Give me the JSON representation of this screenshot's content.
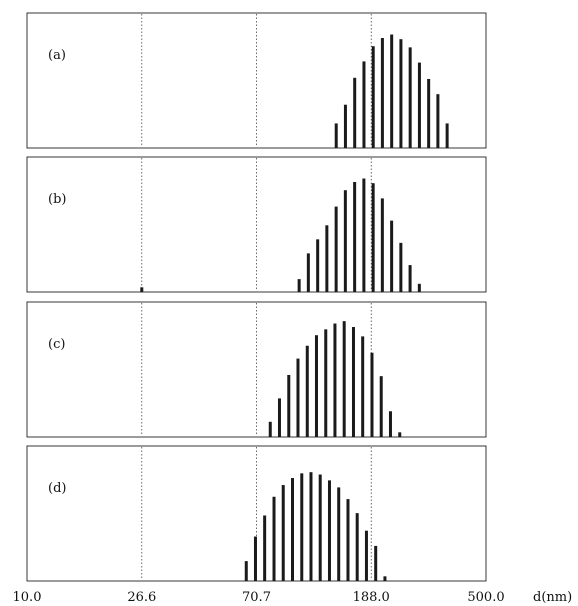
{
  "chart_data": {
    "type": "bar",
    "x_scale": "log",
    "xlim": [
      10.0,
      500.0
    ],
    "x_ticks": [
      "10.0",
      "26.6",
      "70.7",
      "188.0",
      "500.0"
    ],
    "x_tick_values": [
      10.0,
      26.6,
      70.7,
      188.0,
      500.0
    ],
    "xlabel": "d(nm)",
    "grid": "vertical dashed lines at 26.6, 70.7, 188.0",
    "y_axis": "relative frequency, unlabeled",
    "panels": [
      {
        "label": "(a)",
        "x": [
          139.5,
          150.9,
          163.3,
          176.7,
          191.2,
          206.8,
          223.8,
          242.1,
          262.0,
          283.5,
          306.7,
          331.8,
          359.0
        ],
        "values": [
          0.21,
          0.37,
          0.6,
          0.74,
          0.87,
          0.94,
          0.97,
          0.93,
          0.86,
          0.73,
          0.59,
          0.46,
          0.21
        ]
      },
      {
        "label": "(b)",
        "x": [
          26.6,
          101.7,
          110.0,
          119.1,
          128.8,
          139.4,
          150.8,
          163.2,
          176.6,
          191.1,
          206.7,
          223.7,
          242.0,
          261.8,
          283.3
        ],
        "values": [
          0.04,
          0.11,
          0.33,
          0.45,
          0.57,
          0.73,
          0.87,
          0.94,
          0.97,
          0.93,
          0.8,
          0.61,
          0.42,
          0.23,
          0.07
        ]
      },
      {
        "label": "(c)",
        "x": [
          79.5,
          86.0,
          93.1,
          100.7,
          109.0,
          117.9,
          127.6,
          138.0,
          149.3,
          161.6,
          174.8,
          189.2,
          204.7,
          221.5,
          239.7
        ],
        "values": [
          0.13,
          0.33,
          0.53,
          0.67,
          0.78,
          0.87,
          0.92,
          0.97,
          0.99,
          0.94,
          0.86,
          0.72,
          0.52,
          0.22,
          0.04
        ]
      },
      {
        "label": "(d)",
        "x": [
          64.8,
          70.1,
          75.8,
          82.1,
          88.8,
          96.1,
          104.0,
          112.5,
          121.7,
          131.7,
          142.5,
          154.2,
          166.8,
          180.5,
          195.3,
          211.3
        ],
        "values": [
          0.17,
          0.38,
          0.56,
          0.72,
          0.82,
          0.88,
          0.92,
          0.93,
          0.91,
          0.86,
          0.8,
          0.7,
          0.58,
          0.43,
          0.3,
          0.04
        ]
      }
    ]
  }
}
